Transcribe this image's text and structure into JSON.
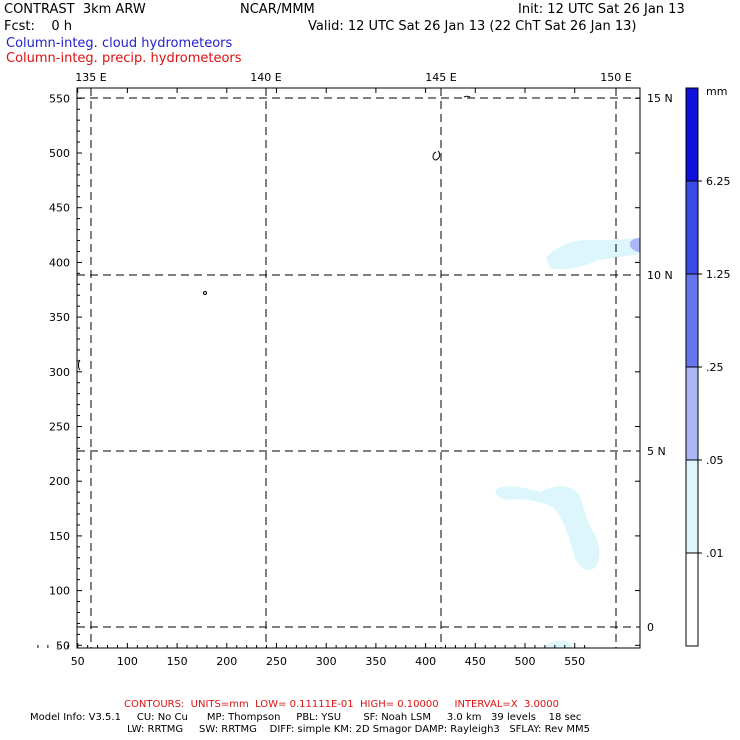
{
  "header": {
    "model": "CONTRAST  3km ARW",
    "center": "NCAR/MMM",
    "init": "Init: 12 UTC Sat 26 Jan 13",
    "fcst": "Fcst:    0 h",
    "valid": "Valid: 12 UTC Sat 26 Jan 13 (22 ChT Sat 26 Jan 13)",
    "field1": "Column-integ. cloud hydrometeors",
    "field2": "Column-integ. precip. hydrometeors",
    "field1_color": "#2222cc",
    "field2_color": "#dd1111"
  },
  "map": {
    "x_ticks": [
      50,
      100,
      150,
      200,
      250,
      300,
      350,
      400,
      450,
      500,
      550
    ],
    "y_ticks": [
      50,
      100,
      150,
      200,
      250,
      300,
      350,
      400,
      450,
      500,
      550
    ],
    "lon_labels": [
      "135 E",
      "140 E",
      "145 E",
      "150 E"
    ],
    "lat_labels": [
      "15 N",
      "10 N",
      "5 N",
      "0"
    ]
  },
  "colorbar": {
    "unit": "mm",
    "colors": [
      "#1010dd",
      "#3a4ae6",
      "#6677ee",
      "#aab6f6",
      "#dcf6fc",
      "#ffffff"
    ],
    "labels": [
      "6.25",
      "1.25",
      ".25",
      ".05",
      ".01"
    ]
  },
  "footer": {
    "contours": "CONTOURS:  UNITS=mm  LOW= 0.11111E-01  HIGH= 0.10000     INTERVAL=X  3.0000",
    "contours_color": "#dd1111",
    "line1": "Model Info: V3.5.1     CU: No Cu      MP: Thompson     PBL: YSU       SF: Noah LSM     3.0 km   39 levels    18 sec",
    "line2": "LW: RRTMG     SW: RRTMG    DIFF: simple KM: 2D Smagor DAMP: Rayleigh3   SFLAY: Rev MM5"
  }
}
